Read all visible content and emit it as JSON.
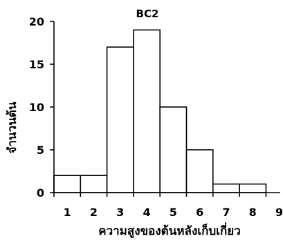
{
  "chart_data": {
    "type": "bar",
    "title": "BC2",
    "xlabel": "ความสูงของต้นหลังเก็บเกี่ยว",
    "ylabel": "จำนวนต้น",
    "categories": [
      "1",
      "2",
      "3",
      "4",
      "5",
      "6",
      "7",
      "8",
      "9"
    ],
    "values": [
      2,
      2,
      17,
      19,
      10,
      5,
      1,
      1,
      0
    ],
    "yticks": [
      "0",
      "5",
      "10",
      "15",
      "20"
    ],
    "ylim": [
      0,
      20
    ],
    "grid": false,
    "legend": "none",
    "colors": {
      "bar_fill": "#ffffff",
      "bar_stroke": "#000000",
      "axis": "#000000"
    }
  }
}
